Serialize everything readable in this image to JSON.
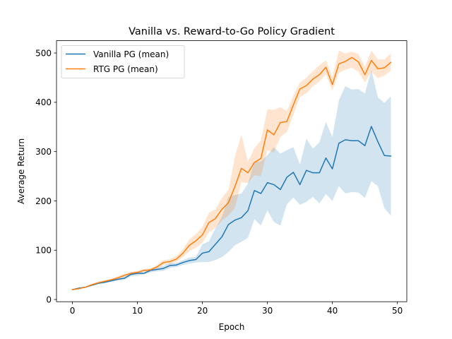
{
  "chart_data": {
    "type": "line",
    "title": "Vanilla vs. Reward-to-Go Policy Gradient",
    "xlabel": "Epoch",
    "ylabel": "Average Return",
    "xlim": [
      -2.45,
      51.45
    ],
    "ylim": [
      -4.5,
      525
    ],
    "xticks": [
      0,
      10,
      20,
      30,
      40,
      50
    ],
    "yticks": [
      0,
      100,
      200,
      300,
      400,
      500
    ],
    "grid": false,
    "legend_position": "top-left",
    "x": [
      0,
      1,
      2,
      3,
      4,
      5,
      6,
      7,
      8,
      9,
      10,
      11,
      12,
      13,
      14,
      15,
      16,
      17,
      18,
      19,
      20,
      21,
      22,
      23,
      24,
      25,
      26,
      27,
      28,
      29,
      30,
      31,
      32,
      33,
      34,
      35,
      36,
      37,
      38,
      39,
      40,
      41,
      42,
      43,
      44,
      45,
      46,
      47,
      48,
      49
    ],
    "series": [
      {
        "name": "Vanilla PG (mean)",
        "color": "#1f77b4",
        "band_color": "#1f77b4",
        "values": [
          20,
          23,
          25,
          29,
          33,
          35,
          38,
          41,
          43,
          51,
          53,
          53,
          59,
          61,
          63,
          69,
          70,
          75,
          79,
          81,
          94,
          97,
          112,
          127,
          152,
          161,
          166,
          180,
          221,
          215,
          237,
          233,
          223,
          248,
          258,
          233,
          262,
          257,
          257,
          287,
          265,
          317,
          324,
          322,
          322,
          312,
          351,
          320,
          292,
          291
        ],
        "lower": [
          19,
          22,
          24,
          27,
          31,
          33,
          36,
          38,
          40,
          47,
          49,
          51,
          55,
          57,
          58,
          64,
          66,
          70,
          73,
          75,
          76,
          76,
          80,
          86,
          96,
          110,
          117,
          125,
          163,
          150,
          181,
          157,
          150,
          193,
          207,
          192,
          198,
          208,
          195,
          214,
          200,
          230,
          215,
          218,
          217,
          206,
          240,
          230,
          185,
          170
        ],
        "upper": [
          21,
          24,
          26,
          31,
          35,
          37,
          40,
          44,
          46,
          55,
          57,
          55,
          63,
          65,
          68,
          74,
          74,
          80,
          85,
          87,
          112,
          118,
          144,
          168,
          208,
          212,
          215,
          235,
          279,
          280,
          293,
          309,
          296,
          303,
          309,
          274,
          326,
          306,
          319,
          360,
          330,
          404,
          433,
          426,
          427,
          418,
          466,
          410,
          399,
          412
        ]
      },
      {
        "name": "RTG PG (mean)",
        "color": "#ff7f0e",
        "band_color": "#ff7f0e",
        "values": [
          20,
          22,
          25,
          30,
          34,
          37,
          40,
          44,
          49,
          53,
          55,
          59,
          60,
          66,
          75,
          77,
          82,
          94,
          110,
          119,
          131,
          156,
          164,
          183,
          196,
          229,
          266,
          257,
          278,
          286,
          344,
          334,
          359,
          361,
          395,
          427,
          434,
          447,
          456,
          471,
          436,
          478,
          483,
          491,
          482,
          456,
          485,
          468,
          470,
          481
        ],
        "lower": [
          19,
          21,
          24,
          28,
          32,
          35,
          38,
          41,
          46,
          50,
          52,
          56,
          57,
          62,
          70,
          72,
          76,
          86,
          98,
          105,
          115,
          136,
          145,
          160,
          170,
          186,
          238,
          236,
          252,
          250,
          303,
          298,
          330,
          340,
          375,
          411,
          418,
          433,
          442,
          457,
          424,
          460,
          466,
          470,
          462,
          440,
          462,
          449,
          454,
          464
        ],
        "upper": [
          21,
          23,
          26,
          32,
          36,
          39,
          42,
          47,
          52,
          56,
          58,
          62,
          63,
          70,
          80,
          82,
          88,
          102,
          122,
          133,
          147,
          176,
          183,
          206,
          222,
          290,
          334,
          280,
          307,
          323,
          386,
          385,
          390,
          382,
          414,
          440,
          450,
          463,
          475,
          485,
          452,
          505,
          499,
          503,
          498,
          472,
          505,
          487,
          487,
          499
        ]
      }
    ]
  }
}
